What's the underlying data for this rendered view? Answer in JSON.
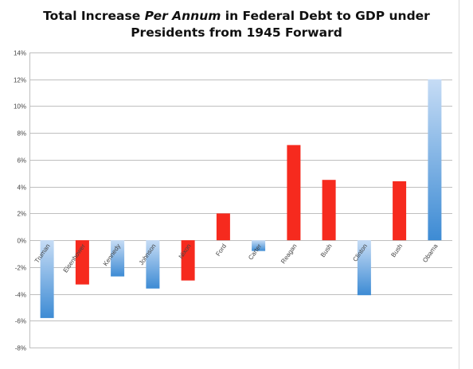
{
  "chart_data": {
    "type": "bar",
    "title_parts": {
      "line1_prefix": "Total Increase ",
      "line1_italic": "Per Annum",
      "line1_suffix": " in Federal Debt to GDP under",
      "line2": "Presidents from 1945 Forward"
    },
    "xlabel": "",
    "ylabel": "",
    "ylim": [
      -8,
      14
    ],
    "yticks": [
      -8,
      -6,
      -4,
      -2,
      0,
      2,
      4,
      6,
      8,
      10,
      12,
      14
    ],
    "ytick_labels": [
      "-8%",
      "-6%",
      "-4%",
      "-2%",
      "0%",
      "2%",
      "4%",
      "6%",
      "8%",
      "10%",
      "12%",
      "14%"
    ],
    "grid": true,
    "legend": "none",
    "categories": [
      "Truman",
      "Eisenhower",
      "Kennedy",
      "Johnson",
      "Nixon",
      "Ford",
      "Carter",
      "Reagan",
      "Bush",
      "Clinton",
      "Bush",
      "Obama"
    ],
    "values": [
      -5.8,
      -3.3,
      -2.7,
      -3.6,
      -3.0,
      2.0,
      -0.8,
      7.1,
      4.5,
      -4.1,
      4.4,
      12.0
    ],
    "bar_colors": [
      "blue",
      "red",
      "blue",
      "blue",
      "red",
      "red",
      "blue",
      "red",
      "red",
      "blue",
      "red",
      "blue"
    ]
  },
  "colors": {
    "red": "#f62a1e",
    "blue_light": "#c6dcf5",
    "blue_dark": "#3d8bd4",
    "grid": "#bfbfbf",
    "axis_text": "#444444"
  }
}
